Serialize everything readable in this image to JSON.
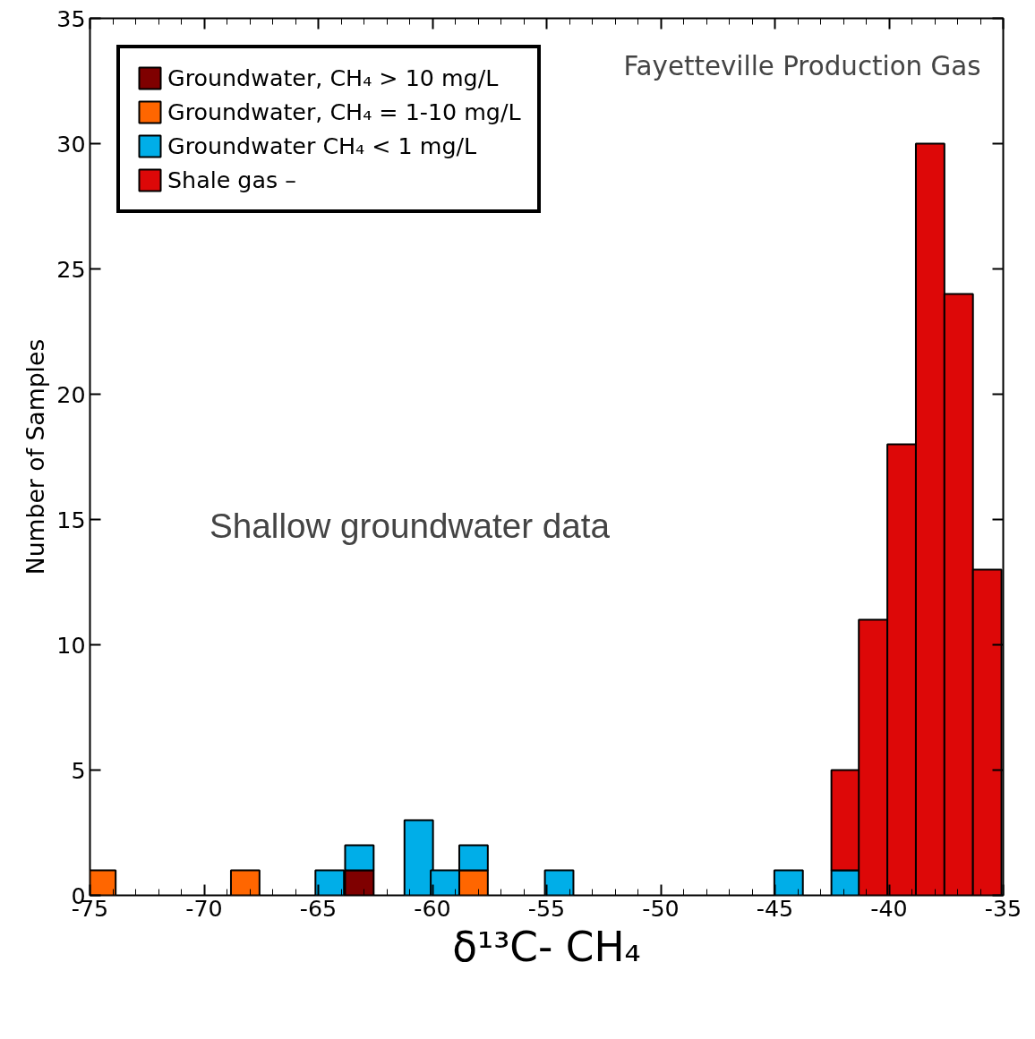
{
  "chart_data": {
    "type": "bar",
    "stacked": true,
    "xlabel": "δ¹³C- CH₄",
    "ylabel": "Number of Samples",
    "annotations": [
      "Fayetteville Production Gas",
      "Shallow groundwater data"
    ],
    "x": [
      -74.5,
      -68.2,
      -64.5,
      -63.2,
      -60.6,
      -59.45,
      -58.2,
      -54.45,
      -44.4,
      -41.9,
      -40.7,
      -39.45,
      -38.2,
      -36.95,
      -35.7
    ],
    "series": [
      {
        "name": "Groundwater, CH₄ > 10 mg/L",
        "color": "#7f0000",
        "values": [
          null,
          null,
          null,
          1,
          null,
          null,
          null,
          null,
          null,
          null,
          null,
          null,
          null,
          null,
          null
        ]
      },
      {
        "name": "Groundwater, CH₄ = 1-10 mg/L",
        "color": "#ff6600",
        "values": [
          1,
          1,
          null,
          null,
          null,
          null,
          1,
          null,
          null,
          null,
          null,
          null,
          null,
          null,
          null
        ]
      },
      {
        "name": "Groundwater CH₄ < 1 mg/L",
        "color": "#00aee8",
        "values": [
          null,
          null,
          1,
          1,
          3,
          1,
          1,
          1,
          1,
          1,
          null,
          null,
          null,
          null,
          null
        ]
      },
      {
        "name": "Shale gas –",
        "color": "#dd0808",
        "values": [
          null,
          null,
          null,
          null,
          null,
          null,
          null,
          null,
          null,
          4,
          11,
          18,
          30,
          24,
          13
        ]
      }
    ],
    "xlim": [
      -75,
      -35
    ],
    "xticks": [
      -75,
      -70,
      -65,
      -60,
      -55,
      -50,
      -45,
      -40,
      -35
    ],
    "ylim": [
      0,
      35
    ],
    "yticks": [
      0,
      5,
      10,
      15,
      20,
      25,
      30,
      35
    ],
    "grid": false,
    "legend": "top left"
  }
}
